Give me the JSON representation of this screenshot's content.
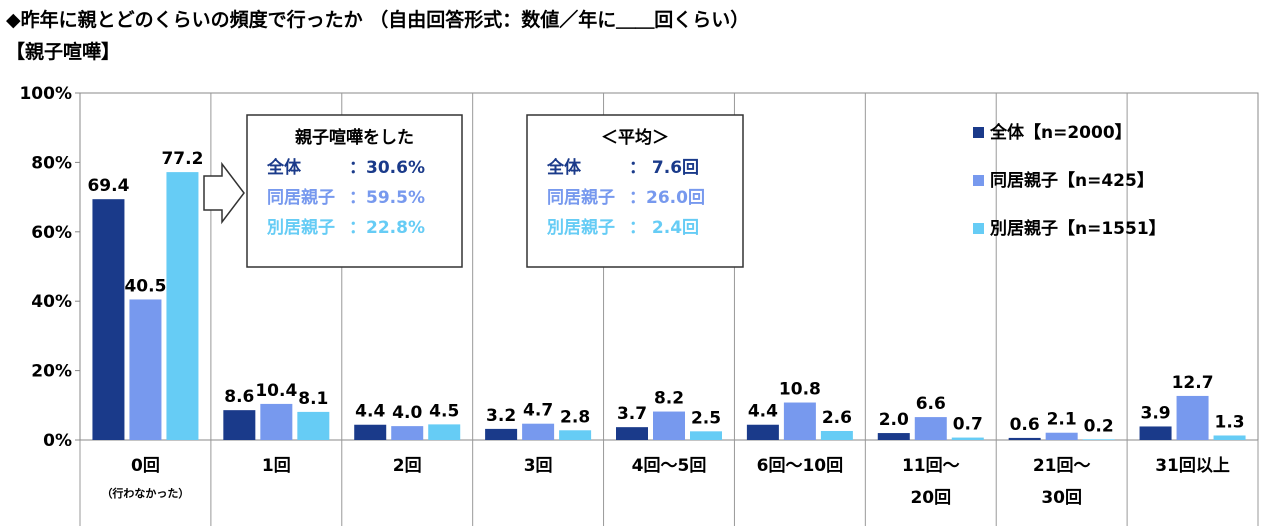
{
  "title": "◆昨年に親とどのくらいの頻度で行ったか （自由回答形式：数値／年に＿＿回くらい）",
  "subtitle": "【親子喧嘩】",
  "colors": {
    "all": "#1a3a8a",
    "cohabit": "#7799ee",
    "separate": "#66ccf5",
    "grid": "#999999"
  },
  "legend": [
    {
      "key": "all",
      "label": "全体【n=2000】"
    },
    {
      "key": "cohabit",
      "label": "同居親子【n=425】"
    },
    {
      "key": "separate",
      "label": "別居親子【n=1551】"
    }
  ],
  "box_rate": {
    "heading": "親子喧嘩をした",
    "rows": [
      {
        "key": "all",
        "label": "全体",
        "value": "：30.6%"
      },
      {
        "key": "cohabit",
        "label": "同居親子",
        "value": "：59.5%"
      },
      {
        "key": "separate",
        "label": "別居親子",
        "value": "：22.8%"
      }
    ]
  },
  "box_avg": {
    "heading": "＜平均＞",
    "rows": [
      {
        "key": "all",
        "label": "全体",
        "value": "：  7.6回"
      },
      {
        "key": "cohabit",
        "label": "同居親子",
        "value": "：26.0回"
      },
      {
        "key": "separate",
        "label": "別居親子",
        "value": "：  2.4回"
      }
    ]
  },
  "chart_data": {
    "type": "bar",
    "ylim": [
      0,
      100
    ],
    "yticks": [
      "0%",
      "20%",
      "40%",
      "60%",
      "80%",
      "100%"
    ],
    "grid": "vertical category separators",
    "legend_position": "top-right",
    "categories": [
      [
        "0回",
        "（行わなかった）"
      ],
      [
        "1回"
      ],
      [
        "2回"
      ],
      [
        "3回"
      ],
      [
        "4回～5回"
      ],
      [
        "6回～10回"
      ],
      [
        "11回～",
        "20回"
      ],
      [
        "21回～",
        "30回"
      ],
      [
        "31回以上"
      ]
    ],
    "series": [
      {
        "name": "全体【n=2000】",
        "values": [
          69.4,
          8.6,
          4.4,
          3.2,
          3.7,
          4.4,
          2.0,
          0.6,
          3.9
        ]
      },
      {
        "name": "同居親子【n=425】",
        "values": [
          40.5,
          10.4,
          4.0,
          4.7,
          8.2,
          10.8,
          6.6,
          2.1,
          12.7
        ]
      },
      {
        "name": "別居親子【n=1551】",
        "values": [
          77.2,
          8.1,
          4.5,
          2.8,
          2.5,
          2.6,
          0.7,
          0.2,
          1.3
        ]
      }
    ]
  }
}
